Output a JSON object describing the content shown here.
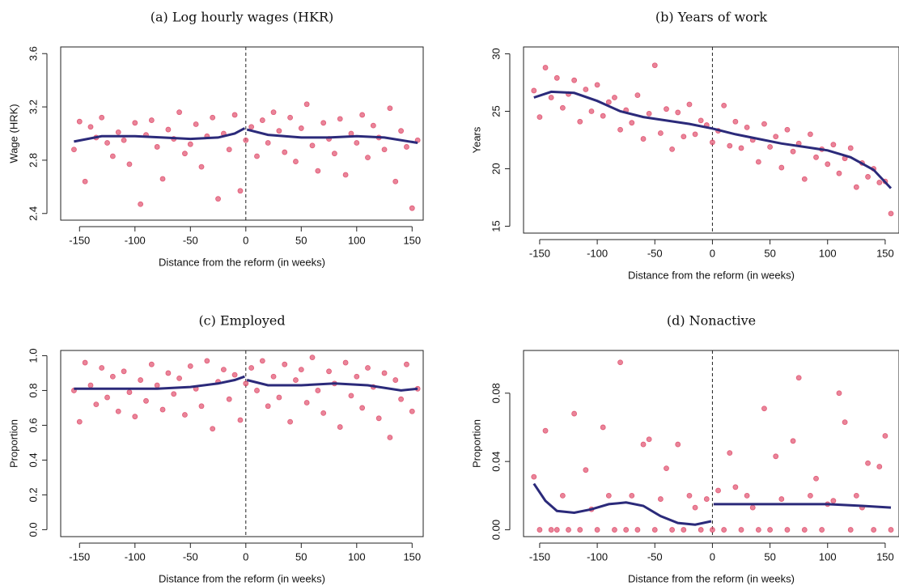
{
  "chart_data": [
    {
      "type": "scatter",
      "title": "(a) Log hourly wages (HKR)",
      "x_label": "Distance from the reform (in weeks)",
      "y_label": "Wage (HRK)",
      "color": "#e0506e",
      "fit_color": "#2b2a7a",
      "vline": 0,
      "xlim": [
        -167,
        160
      ],
      "ylim": [
        2.35,
        3.65
      ],
      "xticks": [
        -150,
        -100,
        -50,
        0,
        50,
        100,
        150
      ],
      "yticks": [
        2.4,
        2.8,
        3.2,
        3.6
      ],
      "x": [
        -155,
        -150,
        -145,
        -140,
        -135,
        -130,
        -125,
        -120,
        -115,
        -110,
        -105,
        -100,
        -95,
        -90,
        -85,
        -80,
        -75,
        -70,
        -65,
        -60,
        -55,
        -50,
        -45,
        -40,
        -35,
        -30,
        -25,
        -20,
        -15,
        -10,
        -5,
        0,
        5,
        10,
        15,
        20,
        25,
        30,
        35,
        40,
        45,
        50,
        55,
        60,
        65,
        70,
        75,
        80,
        85,
        90,
        95,
        100,
        105,
        110,
        115,
        120,
        125,
        130,
        135,
        140,
        145,
        150,
        155
      ],
      "values": [
        2.88,
        3.09,
        2.64,
        3.05,
        2.97,
        3.12,
        2.93,
        2.83,
        3.01,
        2.95,
        2.77,
        3.08,
        2.47,
        2.99,
        3.1,
        2.9,
        2.66,
        3.03,
        2.96,
        3.16,
        2.85,
        2.92,
        3.07,
        2.75,
        2.98,
        3.12,
        2.51,
        3.0,
        2.88,
        3.14,
        2.57,
        2.95,
        3.05,
        2.83,
        3.1,
        2.93,
        3.16,
        3.02,
        2.86,
        3.12,
        2.79,
        3.04,
        3.22,
        2.91,
        2.72,
        3.08,
        2.96,
        2.85,
        3.11,
        2.69,
        3.0,
        2.93,
        3.14,
        2.82,
        3.06,
        2.97,
        2.88,
        3.19,
        2.64,
        3.02,
        2.9,
        2.44,
        2.95
      ],
      "fit": {
        "x": [
          -155,
          -130,
          -100,
          -75,
          -50,
          -25,
          -10,
          -1,
          0,
          1,
          20,
          50,
          75,
          100,
          125,
          155
        ],
        "values": [
          2.94,
          2.98,
          2.98,
          2.97,
          2.96,
          2.97,
          3.0,
          3.04,
          null,
          3.03,
          2.99,
          2.97,
          2.97,
          2.98,
          2.97,
          2.93
        ]
      }
    },
    {
      "type": "scatter",
      "title": "(b) Years of work",
      "x_label": "Distance from the reform (in weeks)",
      "y_label": "Years",
      "color": "#e0506e",
      "fit_color": "#2b2a7a",
      "vline": 0,
      "xlim": [
        -164,
        162
      ],
      "ylim": [
        14.4,
        30.6
      ],
      "xticks": [
        -150,
        -100,
        -50,
        0,
        50,
        100,
        150
      ],
      "yticks": [
        15,
        20,
        25,
        30
      ],
      "x": [
        -155,
        -150,
        -145,
        -140,
        -135,
        -130,
        -125,
        -120,
        -115,
        -110,
        -105,
        -100,
        -95,
        -90,
        -85,
        -80,
        -75,
        -70,
        -65,
        -60,
        -55,
        -50,
        -45,
        -40,
        -35,
        -30,
        -25,
        -20,
        -15,
        -10,
        -5,
        0,
        5,
        10,
        15,
        20,
        25,
        30,
        35,
        40,
        45,
        50,
        55,
        60,
        65,
        70,
        75,
        80,
        85,
        90,
        95,
        100,
        105,
        110,
        115,
        120,
        125,
        130,
        135,
        140,
        145,
        150,
        155
      ],
      "values": [
        26.8,
        24.5,
        28.8,
        26.2,
        27.9,
        25.3,
        26.5,
        27.7,
        24.1,
        26.9,
        25.0,
        27.3,
        24.6,
        25.8,
        26.2,
        23.4,
        25.1,
        24.0,
        26.4,
        22.6,
        24.8,
        29.0,
        23.1,
        25.2,
        21.7,
        24.9,
        22.8,
        25.6,
        23.0,
        24.2,
        23.8,
        22.3,
        23.3,
        25.5,
        22.0,
        24.1,
        21.8,
        23.6,
        22.5,
        20.6,
        23.9,
        21.9,
        22.8,
        20.1,
        23.4,
        21.5,
        22.2,
        19.1,
        23.0,
        21.0,
        21.7,
        20.4,
        22.1,
        19.6,
        20.9,
        21.8,
        18.4,
        20.5,
        19.3,
        20.0,
        18.8,
        18.9,
        16.1
      ],
      "fit": {
        "x": [
          -155,
          -140,
          -120,
          -100,
          -80,
          -60,
          -40,
          -20,
          0,
          20,
          40,
          60,
          80,
          100,
          120,
          140,
          155
        ],
        "values": [
          26.2,
          26.7,
          26.6,
          25.9,
          25.0,
          24.5,
          24.2,
          23.9,
          23.5,
          23.0,
          22.6,
          22.2,
          21.9,
          21.6,
          21.0,
          19.9,
          18.3
        ]
      }
    },
    {
      "type": "scatter",
      "title": "(c) Employed",
      "x_label": "Distance from the reform (in weeks)",
      "y_label": "Proportion",
      "color": "#e0506e",
      "fit_color": "#2b2a7a",
      "vline": 0,
      "xlim": [
        -167,
        160
      ],
      "ylim": [
        -0.04,
        1.03
      ],
      "xticks": [
        -150,
        -100,
        -50,
        0,
        50,
        100,
        150
      ],
      "yticks": [
        {
          "value": 0,
          "label": "0.0"
        },
        {
          "value": 0.2,
          "label": "0.2"
        },
        {
          "value": 0.4,
          "label": "0.4"
        },
        {
          "value": 0.6,
          "label": "0.6"
        },
        {
          "value": 0.8,
          "label": "0.8"
        },
        {
          "value": 1,
          "label": "1.0"
        }
      ],
      "x": [
        -155,
        -150,
        -145,
        -140,
        -135,
        -130,
        -125,
        -120,
        -115,
        -110,
        -105,
        -100,
        -95,
        -90,
        -85,
        -80,
        -75,
        -70,
        -65,
        -60,
        -55,
        -50,
        -45,
        -40,
        -35,
        -30,
        -25,
        -20,
        -15,
        -10,
        -5,
        0,
        5,
        10,
        15,
        20,
        25,
        30,
        35,
        40,
        45,
        50,
        55,
        60,
        65,
        70,
        75,
        80,
        85,
        90,
        95,
        100,
        105,
        110,
        115,
        120,
        125,
        130,
        135,
        140,
        145,
        150,
        155
      ],
      "values": [
        0.8,
        0.62,
        0.96,
        0.83,
        0.72,
        0.93,
        0.76,
        0.88,
        0.68,
        0.91,
        0.79,
        0.65,
        0.86,
        0.74,
        0.95,
        0.83,
        0.69,
        0.9,
        0.78,
        0.87,
        0.66,
        0.94,
        0.81,
        0.71,
        0.97,
        0.58,
        0.85,
        0.92,
        0.75,
        0.89,
        0.63,
        0.84,
        0.93,
        0.8,
        0.97,
        0.71,
        0.88,
        0.76,
        0.95,
        0.62,
        0.86,
        0.92,
        0.73,
        0.99,
        0.8,
        0.67,
        0.91,
        0.84,
        0.59,
        0.96,
        0.77,
        0.88,
        0.7,
        0.93,
        0.82,
        0.64,
        0.9,
        0.53,
        0.86,
        0.75,
        0.95,
        0.68,
        0.81
      ],
      "fit": {
        "x": [
          -155,
          -120,
          -80,
          -50,
          -25,
          -10,
          -1,
          0,
          1,
          20,
          50,
          80,
          110,
          140,
          155
        ],
        "values": [
          0.81,
          0.81,
          0.81,
          0.82,
          0.84,
          0.86,
          0.88,
          null,
          0.86,
          0.83,
          0.83,
          0.84,
          0.83,
          0.8,
          0.81
        ]
      }
    },
    {
      "type": "scatter",
      "title": "(d) Nonactive",
      "x_label": "Distance from the reform (in weeks)",
      "y_label": "Proportion",
      "color": "#e0506e",
      "fit_color": "#2b2a7a",
      "vline": 0,
      "xlim": [
        -164,
        162
      ],
      "ylim": [
        -0.004,
        0.105
      ],
      "xticks": [
        -150,
        -100,
        -50,
        0,
        50,
        100,
        150
      ],
      "yticks": [
        {
          "value": 0,
          "label": "0.00"
        },
        {
          "value": 0.04,
          "label": "0.04"
        },
        {
          "value": 0.08,
          "label": "0.08"
        }
      ],
      "x": [
        -155,
        -150,
        -145,
        -140,
        -135,
        -130,
        -125,
        -120,
        -115,
        -110,
        -105,
        -100,
        -95,
        -90,
        -85,
        -80,
        -75,
        -70,
        -65,
        -60,
        -55,
        -50,
        -45,
        -40,
        -35,
        -30,
        -25,
        -20,
        -15,
        -10,
        -5,
        0,
        5,
        10,
        15,
        20,
        25,
        30,
        35,
        40,
        45,
        50,
        55,
        60,
        65,
        70,
        75,
        80,
        85,
        90,
        95,
        100,
        105,
        110,
        115,
        120,
        125,
        130,
        135,
        140,
        145,
        150,
        155
      ],
      "values": [
        0.031,
        0,
        0.058,
        0,
        0,
        0.02,
        0,
        0.068,
        0,
        0.035,
        0.012,
        0,
        0.06,
        0.02,
        0,
        0.098,
        0,
        0.02,
        0,
        0.05,
        0.053,
        0,
        0.018,
        0.036,
        0,
        0.05,
        0,
        0.02,
        0.013,
        0,
        0.018,
        0,
        0.023,
        0,
        0.045,
        0.025,
        0,
        0.02,
        0.013,
        0,
        0.071,
        0,
        0.043,
        0.018,
        0,
        0.052,
        0.089,
        0,
        0.02,
        0.03,
        0,
        0.015,
        0.017,
        0.08,
        0.063,
        0,
        0.02,
        0.013,
        0.039,
        0,
        0.037,
        0.055,
        0
      ],
      "fit": {
        "x": [
          -155,
          -145,
          -135,
          -120,
          -105,
          -90,
          -75,
          -60,
          -45,
          -30,
          -15,
          -1,
          0,
          1,
          50,
          100,
          130,
          155
        ],
        "values": [
          0.027,
          0.017,
          0.011,
          0.01,
          0.012,
          0.015,
          0.016,
          0.014,
          0.008,
          0.004,
          0.003,
          0.005,
          null,
          0.015,
          0.015,
          0.015,
          0.014,
          0.013
        ]
      }
    }
  ]
}
